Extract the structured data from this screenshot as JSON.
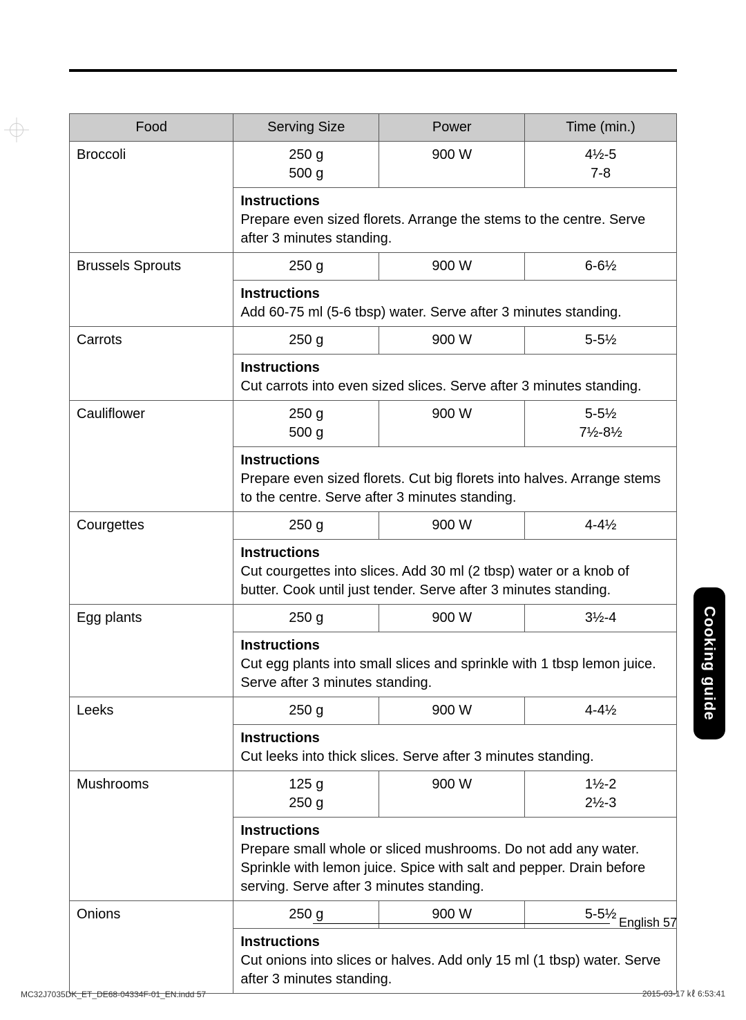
{
  "header_rule_color": "#000000",
  "table": {
    "border_color": "#555555",
    "header_bg": "#cccccc",
    "columns": [
      {
        "key": "food",
        "label": "Food",
        "width_pct": 27
      },
      {
        "key": "size",
        "label": "Serving Size",
        "width_pct": 24
      },
      {
        "key": "power",
        "label": "Power",
        "width_pct": 24
      },
      {
        "key": "time",
        "label": "Time (min.)",
        "width_pct": 25
      }
    ],
    "rows": [
      {
        "food": "Broccoli",
        "size_lines": [
          "250 g",
          "500 g"
        ],
        "power": "900 W",
        "time_lines": [
          "4½-5",
          "7-8"
        ],
        "instructions": "Prepare even sized florets. Arrange the stems to the centre. Serve after 3 minutes standing."
      },
      {
        "food": "Brussels Sprouts",
        "size_lines": [
          "250 g"
        ],
        "power": "900 W",
        "time_lines": [
          "6-6½"
        ],
        "instructions": "Add 60-75 ml (5-6 tbsp) water. Serve after 3 minutes standing."
      },
      {
        "food": "Carrots",
        "size_lines": [
          "250 g"
        ],
        "power": "900 W",
        "time_lines": [
          "5-5½"
        ],
        "instructions": "Cut carrots into even sized slices. Serve after 3 minutes standing."
      },
      {
        "food": "Cauliflower",
        "size_lines": [
          "250 g",
          "500 g"
        ],
        "power": "900 W",
        "time_lines": [
          "5-5½",
          "7½-8½"
        ],
        "instructions": "Prepare even sized florets. Cut big florets into halves. Arrange stems to the centre. Serve after 3 minutes standing."
      },
      {
        "food": "Courgettes",
        "size_lines": [
          "250 g"
        ],
        "power": "900 W",
        "time_lines": [
          "4-4½"
        ],
        "instructions": "Cut courgettes into slices. Add 30 ml (2 tbsp) water or a knob of butter. Cook until just tender. Serve after 3 minutes standing."
      },
      {
        "food": "Egg plants",
        "size_lines": [
          "250 g"
        ],
        "power": "900 W",
        "time_lines": [
          "3½-4"
        ],
        "instructions": "Cut egg plants into small slices and sprinkle with 1 tbsp lemon juice. Serve after 3 minutes standing."
      },
      {
        "food": "Leeks",
        "size_lines": [
          "250 g"
        ],
        "power": "900 W",
        "time_lines": [
          "4-4½"
        ],
        "instructions": "Cut leeks into thick slices. Serve after 3 minutes standing."
      },
      {
        "food": "Mushrooms",
        "size_lines": [
          "125 g",
          "250 g"
        ],
        "power": "900 W",
        "time_lines": [
          "1½-2",
          "2½-3"
        ],
        "instructions": "Prepare small whole or sliced mushrooms. Do not add any water. Sprinkle with lemon juice. Spice with salt and pepper. Drain before serving. Serve after 3 minutes standing."
      },
      {
        "food": "Onions",
        "size_lines": [
          "250 g"
        ],
        "power": "900 W",
        "time_lines": [
          "5-5½"
        ],
        "instructions": "Cut onions into slices or halves. Add only 15 ml (1 tbsp) water. Serve after 3 minutes standing."
      }
    ],
    "instructions_label": "Instructions"
  },
  "side_tab": {
    "label": "Cooking guide",
    "bg": "#000000",
    "fg": "#ffffff"
  },
  "footer": {
    "text": "English 57"
  },
  "imprint": {
    "left": "MC32J7035DK_ET_DE68-04334F-01_EN.indd   57",
    "right": "2015-03-17   ㎘ 6:53:41"
  }
}
